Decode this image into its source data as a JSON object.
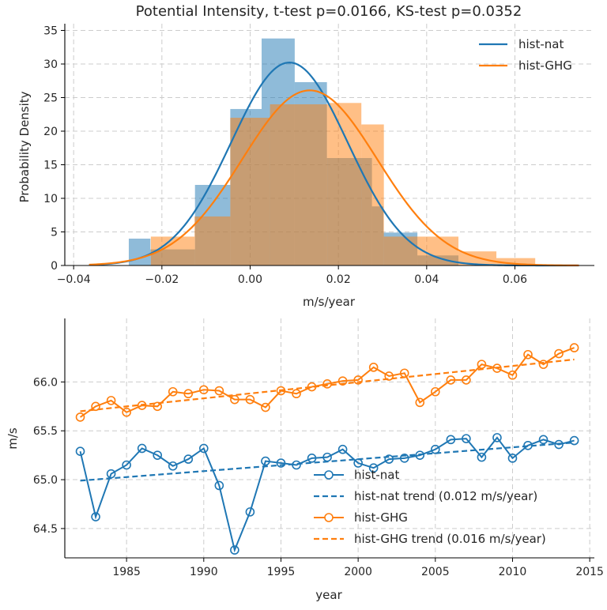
{
  "chart_data": [
    {
      "type": "histogram",
      "title": "Potential Intensity, t-test p=0.0166, KS-test p=0.0352",
      "xlabel": "m/s/year",
      "ylabel": "Probability Density",
      "xlim": [
        -0.042,
        0.078
      ],
      "ylim": [
        0,
        36
      ],
      "xticks": [
        -0.04,
        -0.02,
        0.0,
        0.02,
        0.04,
        0.06
      ],
      "xtick_labels": [
        "−0.04",
        "−0.02",
        "0.00",
        "0.02",
        "0.04",
        "0.06"
      ],
      "yticks": [
        0,
        5,
        10,
        15,
        20,
        25,
        30,
        35
      ],
      "ytick_labels": [
        "0",
        "5",
        "10",
        "15",
        "20",
        "25",
        "30",
        "35"
      ],
      "grid": true,
      "legend_position": "top-right",
      "series": [
        {
          "name": "hist-nat",
          "color": "#1f77b4",
          "bin_edges": [
            -0.0275,
            -0.0226,
            -0.0125,
            -0.0045,
            0.0026,
            0.0101,
            0.0174,
            0.0276,
            0.0302,
            0.0379,
            0.0472
          ],
          "densities": [
            4.0,
            2.4,
            12.0,
            23.3,
            33.8,
            27.3,
            16.0,
            8.8,
            4.9,
            1.5
          ],
          "fit_mean": 0.0089,
          "fit_std": 0.0132,
          "fit_range": [
            -0.0365,
            0.0745
          ]
        },
        {
          "name": "hist-GHG",
          "color": "#ff7f0e",
          "bin_edges": [
            -0.0225,
            -0.0126,
            -0.0045,
            0.0045,
            0.0176,
            0.0252,
            0.0303,
            0.0398,
            0.0472,
            0.0558,
            0.0646
          ],
          "densities": [
            4.3,
            7.3,
            22.0,
            24.0,
            24.2,
            21.0,
            4.3,
            4.3,
            2.1,
            1.1
          ],
          "fit_mean": 0.0135,
          "fit_std": 0.0153,
          "fit_range": [
            -0.0365,
            0.0745
          ]
        }
      ]
    },
    {
      "type": "line",
      "xlabel": "year",
      "ylabel": "m/s",
      "xlim": [
        1981,
        2015.3
      ],
      "ylim": [
        64.2,
        66.65
      ],
      "xticks": [
        1985,
        1990,
        1995,
        2000,
        2005,
        2010,
        2015
      ],
      "xtick_labels": [
        "1985",
        "1990",
        "1995",
        "2000",
        "2005",
        "2010",
        "2015"
      ],
      "yticks": [
        64.5,
        65.0,
        65.5,
        66.0
      ],
      "ytick_labels": [
        "64.5",
        "65.0",
        "65.5",
        "66.0"
      ],
      "grid": true,
      "legend_position": "bottom-right",
      "x": [
        1982,
        1983,
        1984,
        1985,
        1986,
        1987,
        1988,
        1989,
        1990,
        1991,
        1992,
        1993,
        1994,
        1995,
        1996,
        1997,
        1998,
        1999,
        2000,
        2001,
        2002,
        2003,
        2004,
        2005,
        2006,
        2007,
        2008,
        2009,
        2010,
        2011,
        2012,
        2013,
        2014
      ],
      "series": [
        {
          "name": "hist-nat",
          "color": "#1f77b4",
          "values": [
            65.29,
            64.62,
            65.06,
            65.15,
            65.32,
            65.25,
            65.14,
            65.21,
            65.32,
            64.94,
            64.28,
            64.67,
            65.19,
            65.17,
            65.15,
            65.22,
            65.23,
            65.31,
            65.17,
            65.12,
            65.21,
            65.22,
            65.25,
            65.31,
            65.41,
            65.42,
            65.23,
            65.43,
            65.22,
            65.35,
            65.41,
            65.36,
            65.4
          ]
        },
        {
          "name": "hist-nat trend (0.012 m/s/year)",
          "color": "#1f77b4",
          "dashed": true,
          "trend_endpoints": [
            [
              1982,
              64.99
            ],
            [
              2014,
              65.38
            ]
          ]
        },
        {
          "name": "hist-GHG",
          "color": "#ff7f0e",
          "values": [
            65.64,
            65.75,
            65.81,
            65.69,
            65.76,
            65.75,
            65.9,
            65.88,
            65.92,
            65.91,
            65.82,
            65.82,
            65.74,
            65.91,
            65.88,
            65.95,
            65.98,
            66.01,
            66.02,
            66.15,
            66.06,
            66.09,
            65.79,
            65.9,
            66.02,
            66.02,
            66.18,
            66.14,
            66.07,
            66.28,
            66.18,
            66.29,
            66.35
          ]
        },
        {
          "name": "hist-GHG trend (0.016 m/s/year)",
          "color": "#ff7f0e",
          "dashed": true,
          "trend_endpoints": [
            [
              1982,
              65.7
            ],
            [
              2014,
              66.23
            ]
          ]
        }
      ]
    }
  ]
}
